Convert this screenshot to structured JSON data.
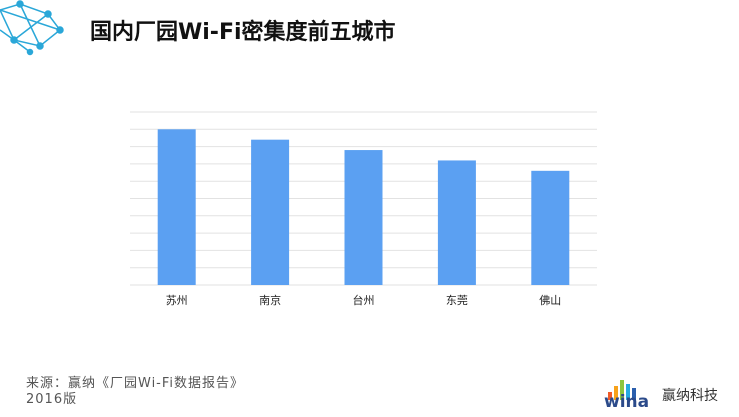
{
  "chart_data": {
    "type": "bar",
    "title": "国内厂园Wi-Fi密集度前五城市",
    "categories": [
      "苏州",
      "南京",
      "台州",
      "东莞",
      "佛山"
    ],
    "values": [
      9.0,
      8.4,
      7.8,
      7.2,
      6.6
    ],
    "color": "#5ba0f2",
    "ylim": [
      0,
      10
    ],
    "yticks": [
      0,
      1,
      2,
      3,
      4,
      5,
      6,
      7,
      8,
      9,
      10
    ],
    "grid": true
  },
  "source": "来源：赢纳《厂园Wi-Fi数据报告》2016版",
  "logo": {
    "mark": "wina",
    "brand": "赢纳科技"
  }
}
